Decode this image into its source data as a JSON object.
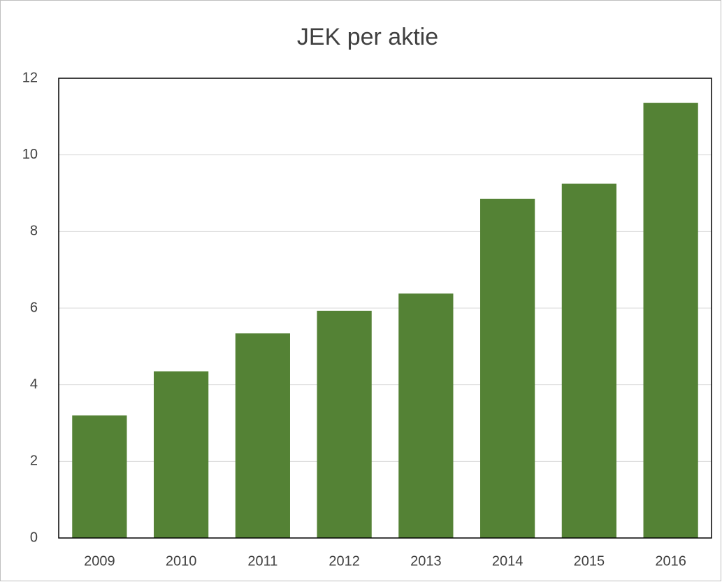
{
  "chart_data": {
    "type": "bar",
    "title": "JEK per aktie",
    "categories": [
      "2009",
      "2010",
      "2011",
      "2012",
      "2013",
      "2014",
      "2015",
      "2016"
    ],
    "values": [
      3.2,
      4.35,
      5.34,
      5.93,
      6.38,
      8.85,
      9.25,
      11.36
    ],
    "color": "#548235",
    "ylim": [
      0,
      12
    ],
    "yticks": [
      0,
      2,
      4,
      6,
      8,
      10,
      12
    ],
    "grid": true
  }
}
